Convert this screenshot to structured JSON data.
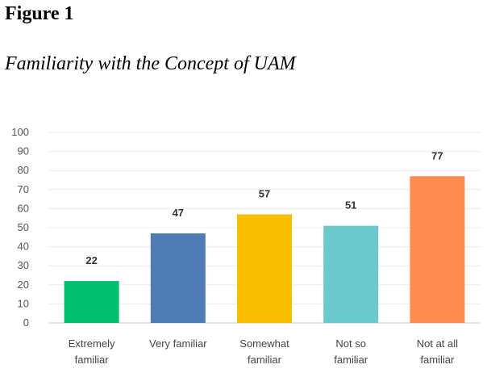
{
  "figure": {
    "label": "Figure 1",
    "title": "Familiarity with the Concept of UAM"
  },
  "chart_data": {
    "type": "bar",
    "categories": [
      [
        "Extremely",
        "familiar"
      ],
      [
        "Very familiar"
      ],
      [
        "Somewhat",
        "familiar"
      ],
      [
        "Not so",
        "familiar"
      ],
      [
        "Not at all",
        "familiar"
      ]
    ],
    "values": [
      22,
      47,
      57,
      51,
      77
    ],
    "colors": [
      "#00bf6f",
      "#507cb6",
      "#f9be00",
      "#6bc8cd",
      "#ff8b4f"
    ],
    "ylim": [
      0,
      100
    ],
    "yticks": [
      0,
      10,
      20,
      30,
      40,
      50,
      60,
      70,
      80,
      90,
      100
    ],
    "grid": true,
    "legend": "none"
  }
}
